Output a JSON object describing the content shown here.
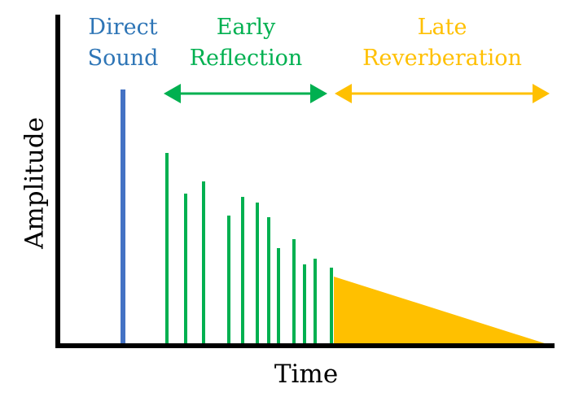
{
  "axes": {
    "y_label": "Amplitude",
    "x_label": "Time"
  },
  "regions": [
    {
      "lines": [
        "Direct",
        "Sound"
      ]
    },
    {
      "lines": [
        "Early",
        "Reflection"
      ]
    },
    {
      "lines": [
        "Late",
        "Reverberation"
      ]
    }
  ]
}
